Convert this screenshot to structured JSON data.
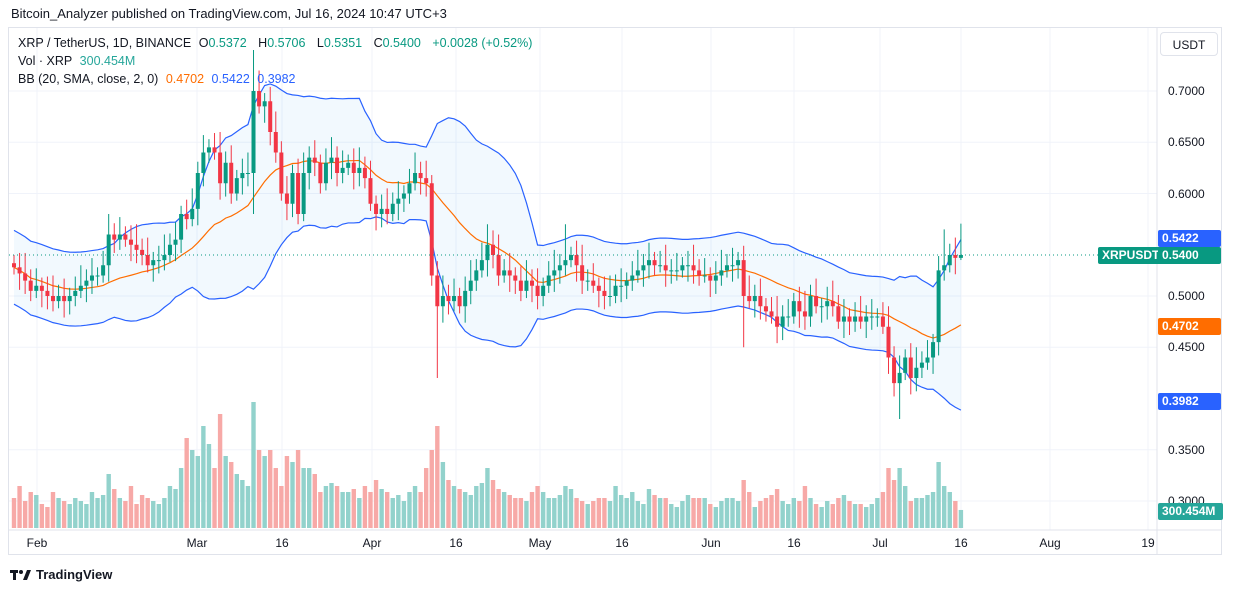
{
  "publisher_line": "Bitcoin_Analyzer published on TradingView.com, Jul 16, 2024 10:47 UTC+3",
  "legend": {
    "symbol": "XRP / TetherUS, 1D, BINANCE",
    "o_label": "O",
    "o": "0.5372",
    "h_label": "H",
    "h": "0.5706",
    "l_label": "L",
    "l": "0.5351",
    "c_label": "C",
    "c": "0.5400",
    "change": "+0.0028 (+0.52%)",
    "vol_label": "Vol · XRP",
    "vol": "300.454M",
    "bb_label": "BB (20, SMA, close, 2, 0)",
    "bb_basis": "0.4702",
    "bb_upper": "0.5422",
    "bb_lower": "0.3982"
  },
  "currency_button": "USDT",
  "tags": {
    "symbol": "XRPUSDT",
    "last": "0.5400",
    "upper": "0.5422",
    "basis": "0.4702",
    "lower": "0.3982",
    "volume": "300.454M"
  },
  "price_ticks": [
    "0.7000",
    "0.6500",
    "0.6000",
    "0.5000",
    "0.4500",
    "0.3500",
    "0.3000"
  ],
  "time_ticks": [
    "Feb",
    "Mar",
    "16",
    "Apr",
    "16",
    "May",
    "16",
    "Jun",
    "16",
    "Jul",
    "16",
    "Aug",
    "19"
  ],
  "brand": "TradingView",
  "colors": {
    "up": "#089981",
    "down": "#f23645",
    "vol_up": "#92d2cc",
    "vol_down": "#f7a9a7",
    "bb": "#2962ff",
    "basis": "#ff6d00",
    "fill": "#2196f3"
  },
  "chart_data": {
    "type": "candlestick",
    "symbol": "XRPUSDT",
    "interval": "1D",
    "start_date": "2024-01-28",
    "end_date": "2024-07-16",
    "y_range": [
      0.28,
      0.76
    ],
    "grid": true,
    "closes": [
      0.528,
      0.522,
      0.515,
      0.505,
      0.51,
      0.505,
      0.5,
      0.495,
      0.5,
      0.495,
      0.5,
      0.505,
      0.51,
      0.515,
      0.52,
      0.52,
      0.53,
      0.56,
      0.555,
      0.56,
      0.555,
      0.55,
      0.545,
      0.54,
      0.53,
      0.535,
      0.535,
      0.54,
      0.55,
      0.555,
      0.58,
      0.575,
      0.585,
      0.62,
      0.64,
      0.645,
      0.64,
      0.61,
      0.63,
      0.6,
      0.615,
      0.62,
      0.62,
      0.7,
      0.685,
      0.69,
      0.66,
      0.64,
      0.6,
      0.59,
      0.62,
      0.58,
      0.62,
      0.635,
      0.63,
      0.61,
      0.63,
      0.635,
      0.62,
      0.625,
      0.63,
      0.62,
      0.625,
      0.615,
      0.59,
      0.58,
      0.585,
      0.58,
      0.59,
      0.595,
      0.6,
      0.61,
      0.62,
      0.615,
      0.61,
      0.52,
      0.49,
      0.5,
      0.495,
      0.5,
      0.49,
      0.505,
      0.515,
      0.525,
      0.535,
      0.55,
      0.54,
      0.52,
      0.525,
      0.52,
      0.515,
      0.505,
      0.515,
      0.51,
      0.5,
      0.51,
      0.52,
      0.525,
      0.53,
      0.535,
      0.54,
      0.53,
      0.515,
      0.515,
      0.51,
      0.505,
      0.5,
      0.5,
      0.51,
      0.51,
      0.515,
      0.52,
      0.525,
      0.53,
      0.535,
      0.53,
      0.53,
      0.525,
      0.525,
      0.525,
      0.53,
      0.53,
      0.525,
      0.52,
      0.52,
      0.515,
      0.52,
      0.525,
      0.53,
      0.53,
      0.535,
      0.5,
      0.495,
      0.5,
      0.49,
      0.485,
      0.48,
      0.47,
      0.48,
      0.48,
      0.495,
      0.485,
      0.48,
      0.5,
      0.49,
      0.49,
      0.495,
      0.49,
      0.475,
      0.48,
      0.475,
      0.48,
      0.475,
      0.48,
      0.48,
      0.48,
      0.47,
      0.44,
      0.415,
      0.425,
      0.44,
      0.42,
      0.43,
      0.435,
      0.44,
      0.455,
      0.525,
      0.53,
      0.54,
      0.5372,
      0.54
    ],
    "wick_extremes": {
      "2024-03-11": {
        "high": 0.74,
        "low": 0.58
      },
      "2024-03-12": {
        "high": 0.72
      },
      "2024-04-13": {
        "low": 0.42
      },
      "2024-04-22": {
        "high": 0.57
      },
      "2024-05-06": {
        "high": 0.57
      },
      "2024-06-07": {
        "low": 0.45
      },
      "2024-07-05": {
        "low": 0.38
      },
      "2024-07-13": {
        "high": 0.565
      },
      "2024-07-16": {
        "high": 0.5706,
        "low": 0.5351
      }
    },
    "volume_millions": [
      500,
      700,
      450,
      600,
      550,
      400,
      350,
      600,
      500,
      450,
      400,
      500,
      450,
      400,
      600,
      500,
      550,
      900,
      650,
      500,
      450,
      700,
      400,
      550,
      500,
      450,
      400,
      500,
      700,
      650,
      1000,
      1500,
      1300,
      1200,
      1700,
      1400,
      1000,
      1900,
      1200,
      1100,
      900,
      800,
      700,
      2100,
      1300,
      1200,
      1300,
      1000,
      700,
      1200,
      1100,
      1300,
      1000,
      1000,
      900,
      600,
      700,
      750,
      700,
      600,
      600,
      650,
      500,
      700,
      600,
      800,
      650,
      600,
      500,
      550,
      450,
      600,
      700,
      600,
      1000,
      1300,
      1700,
      1100,
      800,
      700,
      650,
      600,
      550,
      700,
      750,
      1000,
      800,
      650,
      600,
      550,
      500,
      500,
      450,
      600,
      700,
      600,
      500,
      500,
      550,
      700,
      650,
      500,
      450,
      400,
      450,
      500,
      500,
      450,
      700,
      550,
      500,
      600,
      450,
      400,
      650,
      550,
      500,
      500,
      400,
      350,
      450,
      550,
      500,
      500,
      500,
      400,
      350,
      450,
      500,
      500,
      450,
      800,
      600,
      350,
      450,
      500,
      550,
      650,
      450,
      400,
      500,
      450,
      700,
      500,
      400,
      350,
      450,
      400,
      500,
      550,
      450,
      400,
      400,
      350,
      400,
      500,
      600,
      1000,
      800,
      1000,
      700,
      450,
      500,
      500,
      550,
      600,
      1100,
      700,
      600,
      450,
      300.454
    ],
    "indicator": {
      "name": "BB",
      "length": 20,
      "type": "SMA",
      "source": "close",
      "mult": 2,
      "last_basis": 0.4702,
      "last_upper": 0.5422,
      "last_lower": 0.3982
    }
  }
}
